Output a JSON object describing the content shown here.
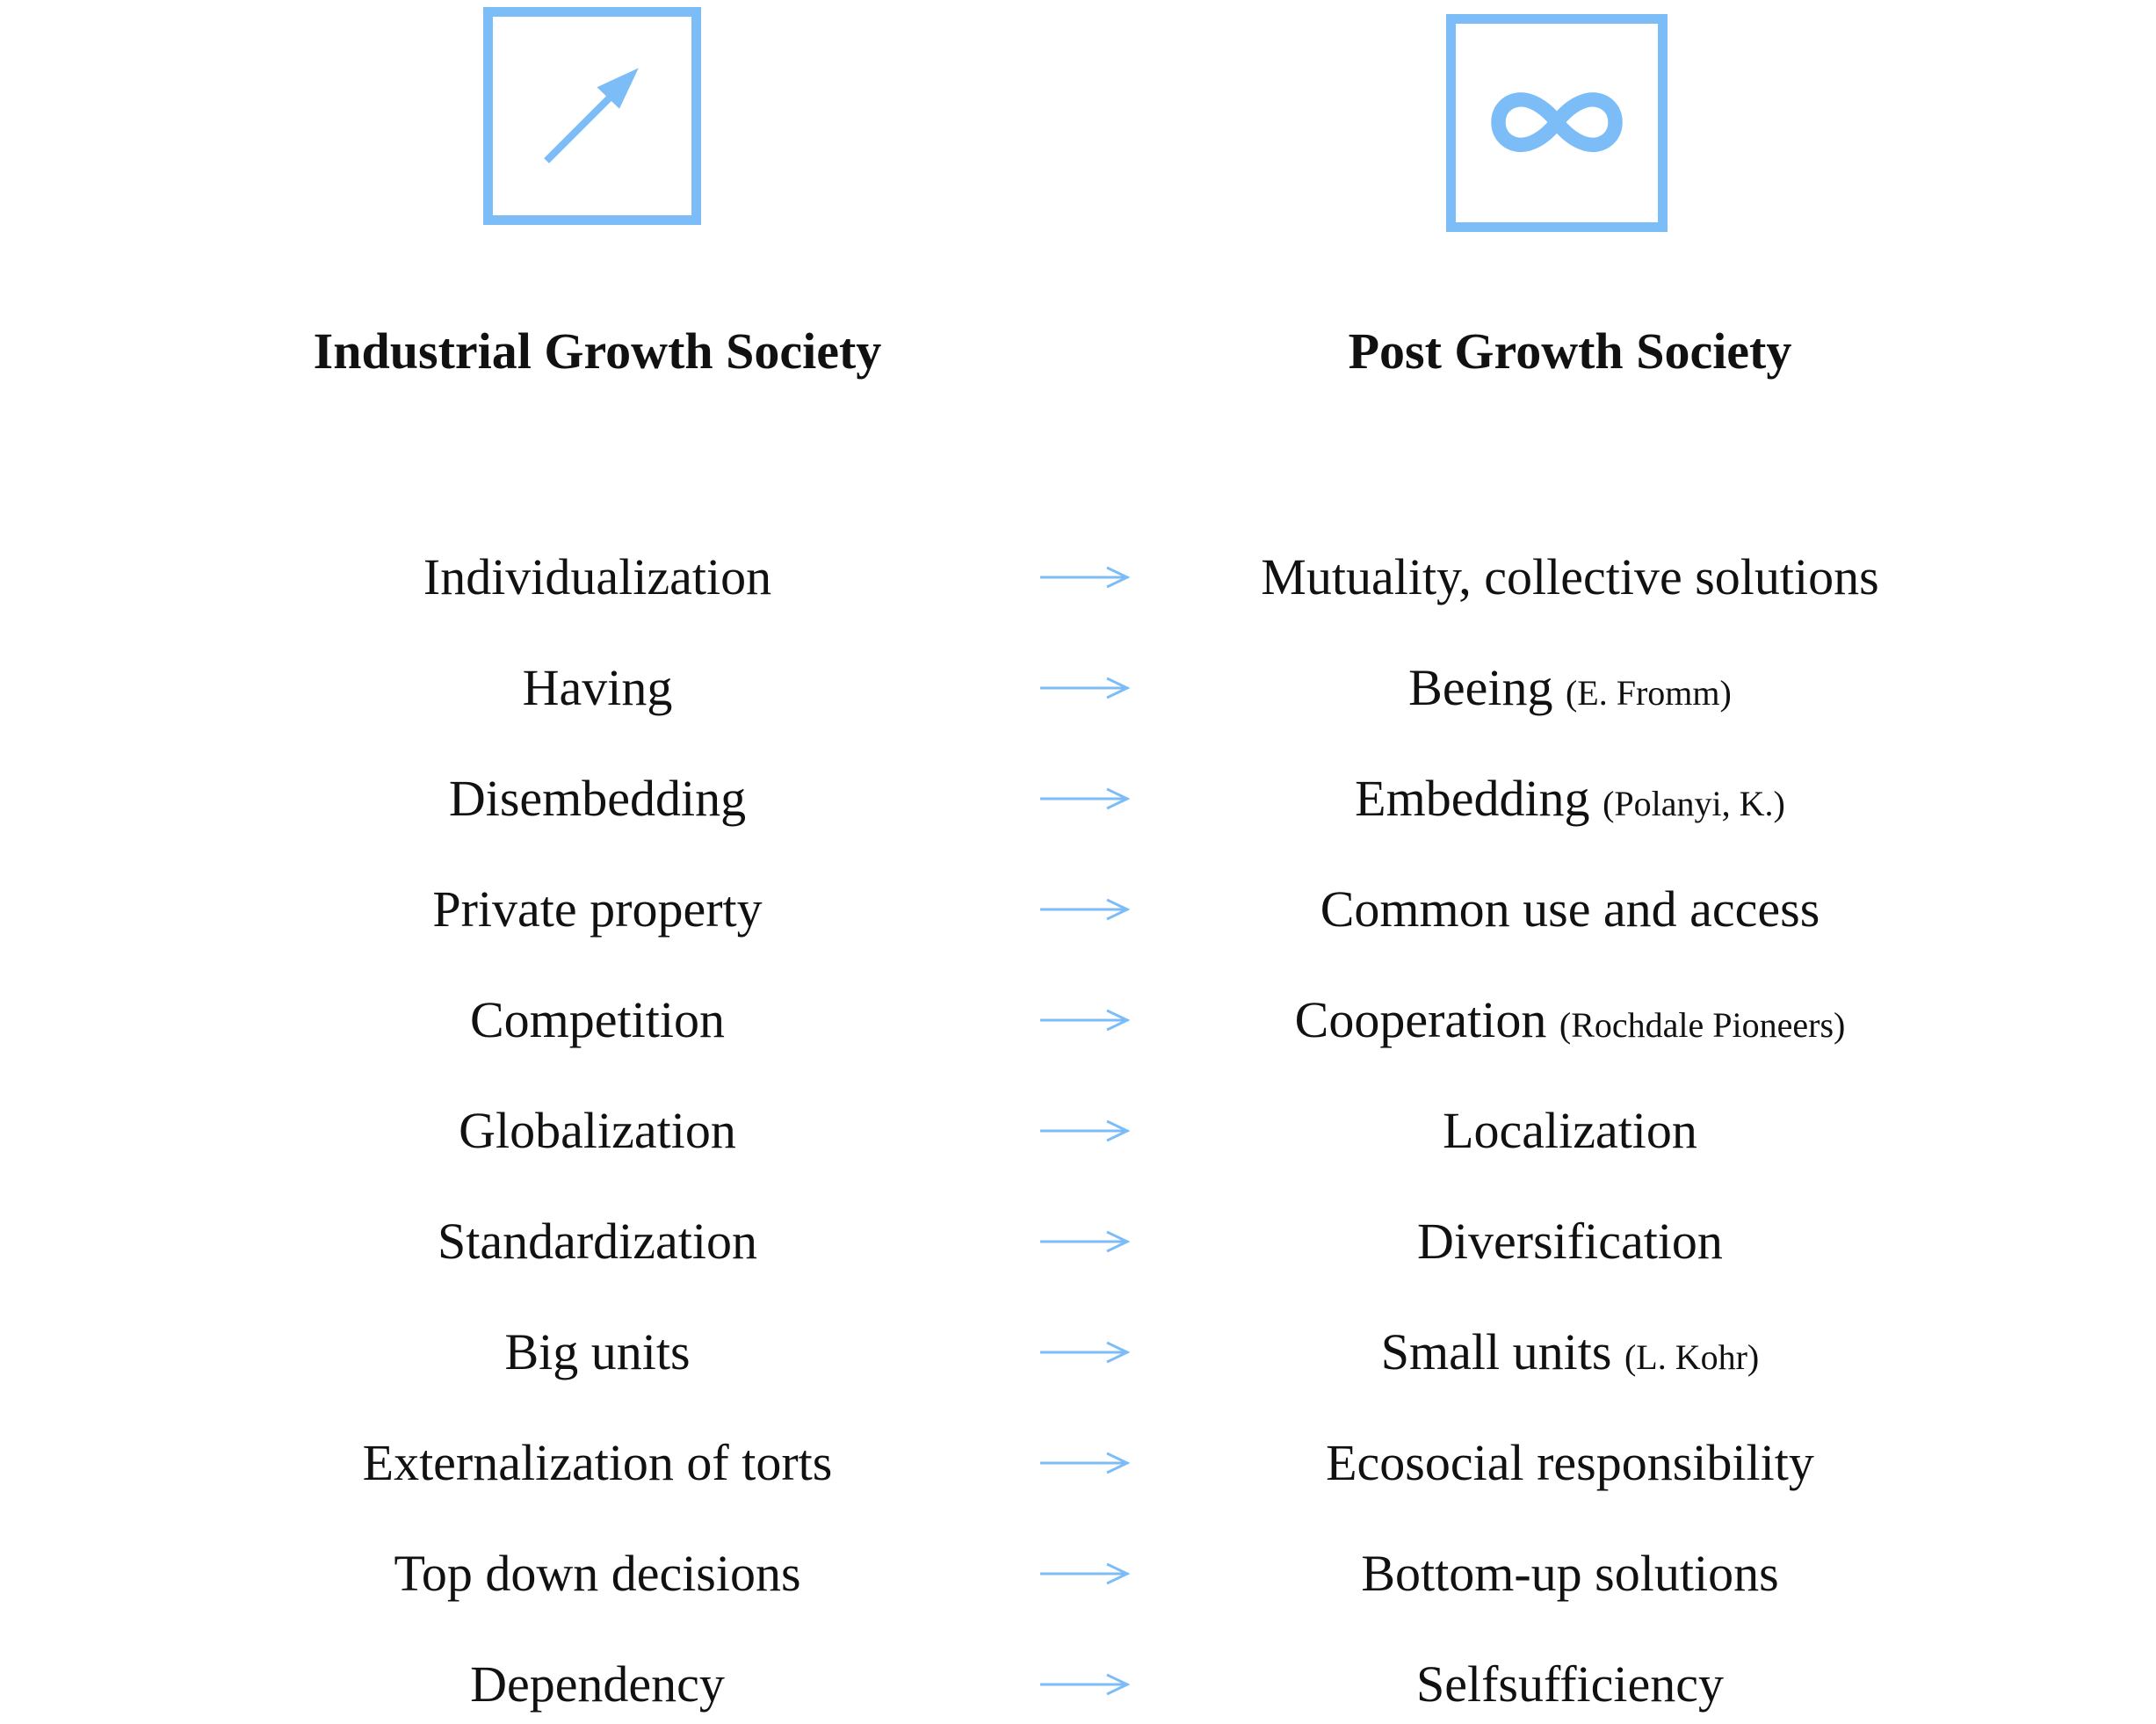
{
  "colors": {
    "accent": "#7cbcf7",
    "text": "#111111",
    "background": "#ffffff"
  },
  "icons": {
    "left": "diagonal-arrow-up-right-icon",
    "right": "infinity-icon"
  },
  "headings": {
    "left": "Industrial Growth Society",
    "right": "Post Growth Society"
  },
  "rows": [
    {
      "from": "Individualization",
      "to": "Mutuality, collective solutions",
      "note": ""
    },
    {
      "from": "Having",
      "to": "Beeing",
      "note": "(E. Fromm)"
    },
    {
      "from": "Disembedding",
      "to": "Embedding",
      "note": "(Polanyi, K.)"
    },
    {
      "from": "Private property",
      "to": "Common use and access",
      "note": ""
    },
    {
      "from": "Competition",
      "to": "Cooperation",
      "note": "(Rochdale Pioneers)"
    },
    {
      "from": "Globalization",
      "to": "Localization",
      "note": ""
    },
    {
      "from": "Standardization",
      "to": "Diversification",
      "note": ""
    },
    {
      "from": "Big units",
      "to": "Small units",
      "note": "(L. Kohr)"
    },
    {
      "from": "Externalization of torts",
      "to": "Ecosocial responsibility",
      "note": ""
    },
    {
      "from": "Top down decisions",
      "to": "Bottom-up solutions",
      "note": ""
    },
    {
      "from": "Dependency",
      "to": "Selfsufficiency",
      "note": ""
    }
  ]
}
